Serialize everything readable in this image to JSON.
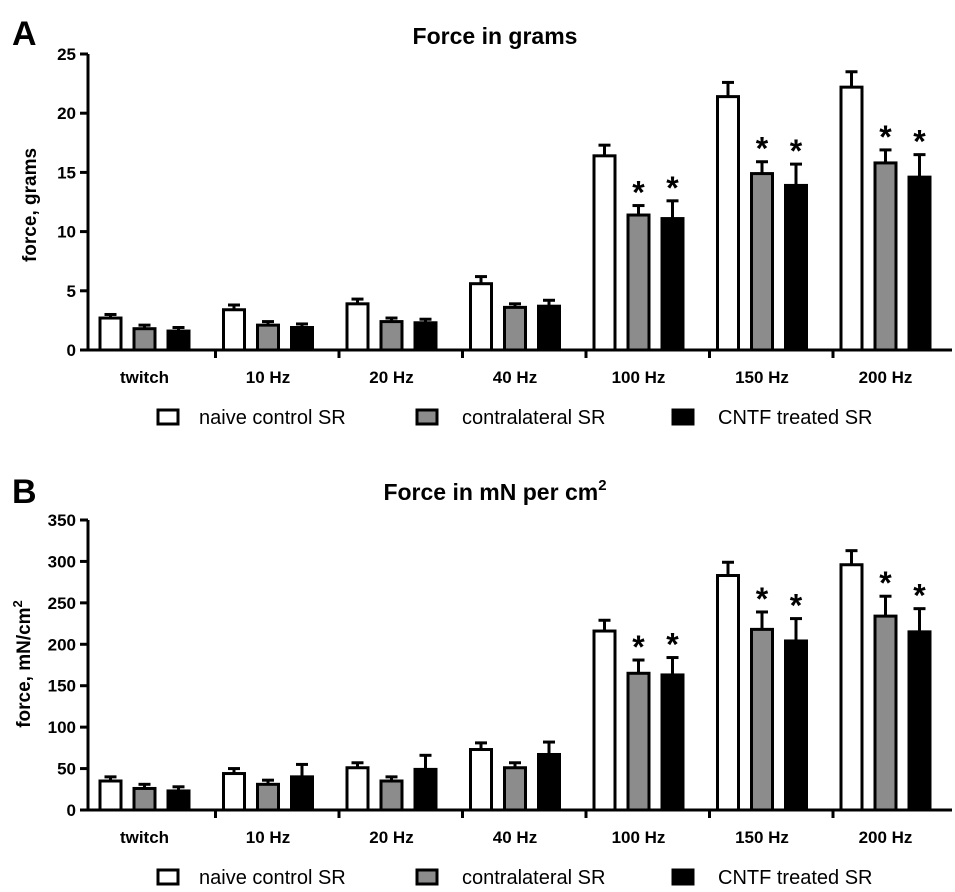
{
  "legend": [
    {
      "label": "naive control SR",
      "color": "#ffffff"
    },
    {
      "label": "contralateral SR",
      "color": "#8c8c8c"
    },
    {
      "label": "CNTF treated SR",
      "color": "#000000"
    }
  ],
  "chart_data": [
    {
      "type": "bar",
      "panel": "A",
      "title": "Force in grams",
      "ylabel": "force, grams",
      "ylim": [
        0,
        25
      ],
      "yticks": [
        0,
        5,
        10,
        15,
        20,
        25
      ],
      "categories": [
        "twitch",
        "10 Hz",
        "20 Hz",
        "40 Hz",
        "100 Hz",
        "150 Hz",
        "200 Hz"
      ],
      "series": [
        {
          "name": "naive control SR",
          "color": "#ffffff",
          "values": [
            2.7,
            3.4,
            3.9,
            5.6,
            16.4,
            21.4,
            22.2
          ],
          "errors": [
            0.3,
            0.4,
            0.4,
            0.6,
            0.9,
            1.2,
            1.3
          ]
        },
        {
          "name": "contralateral SR",
          "color": "#8c8c8c",
          "values": [
            1.8,
            2.1,
            2.4,
            3.6,
            11.4,
            14.9,
            15.8
          ],
          "errors": [
            0.3,
            0.3,
            0.3,
            0.3,
            0.8,
            1.0,
            1.1
          ]
        },
        {
          "name": "CNTF treated SR",
          "color": "#000000",
          "values": [
            1.6,
            1.9,
            2.3,
            3.7,
            11.1,
            13.9,
            14.6
          ],
          "errors": [
            0.3,
            0.3,
            0.3,
            0.5,
            1.5,
            1.8,
            1.9
          ]
        }
      ],
      "significance": [
        {
          "category": 4,
          "series": 1,
          "label": "*"
        },
        {
          "category": 4,
          "series": 2,
          "label": "*"
        },
        {
          "category": 5,
          "series": 1,
          "label": "*"
        },
        {
          "category": 5,
          "series": 2,
          "label": "*"
        },
        {
          "category": 6,
          "series": 1,
          "label": "*"
        },
        {
          "category": 6,
          "series": 2,
          "label": "*"
        }
      ]
    },
    {
      "type": "bar",
      "panel": "B",
      "title": "Force in mN per cm",
      "title_sup": "2",
      "ylabel": "force, mN/cm",
      "ylabel_sup": "2",
      "ylim": [
        0,
        350
      ],
      "yticks": [
        0,
        50,
        100,
        150,
        200,
        250,
        300,
        350
      ],
      "categories": [
        "twitch",
        "10 Hz",
        "20 Hz",
        "40 Hz",
        "100 Hz",
        "150 Hz",
        "200 Hz"
      ],
      "series": [
        {
          "name": "naive control SR",
          "color": "#ffffff",
          "values": [
            35,
            44,
            51,
            73,
            216,
            283,
            296
          ],
          "errors": [
            5,
            6,
            6,
            8,
            13,
            16,
            17
          ]
        },
        {
          "name": "contralateral SR",
          "color": "#8c8c8c",
          "values": [
            26,
            31,
            35,
            51,
            165,
            218,
            234
          ],
          "errors": [
            5,
            5,
            5,
            6,
            16,
            21,
            24
          ]
        },
        {
          "name": "CNTF treated SR",
          "color": "#000000",
          "values": [
            23,
            40,
            49,
            67,
            163,
            204,
            215
          ],
          "errors": [
            5,
            15,
            17,
            15,
            21,
            27,
            28
          ]
        }
      ],
      "significance": [
        {
          "category": 4,
          "series": 1,
          "label": "*"
        },
        {
          "category": 4,
          "series": 2,
          "label": "*"
        },
        {
          "category": 5,
          "series": 1,
          "label": "*"
        },
        {
          "category": 5,
          "series": 2,
          "label": "*"
        },
        {
          "category": 6,
          "series": 1,
          "label": "*"
        },
        {
          "category": 6,
          "series": 2,
          "label": "*"
        }
      ]
    }
  ]
}
